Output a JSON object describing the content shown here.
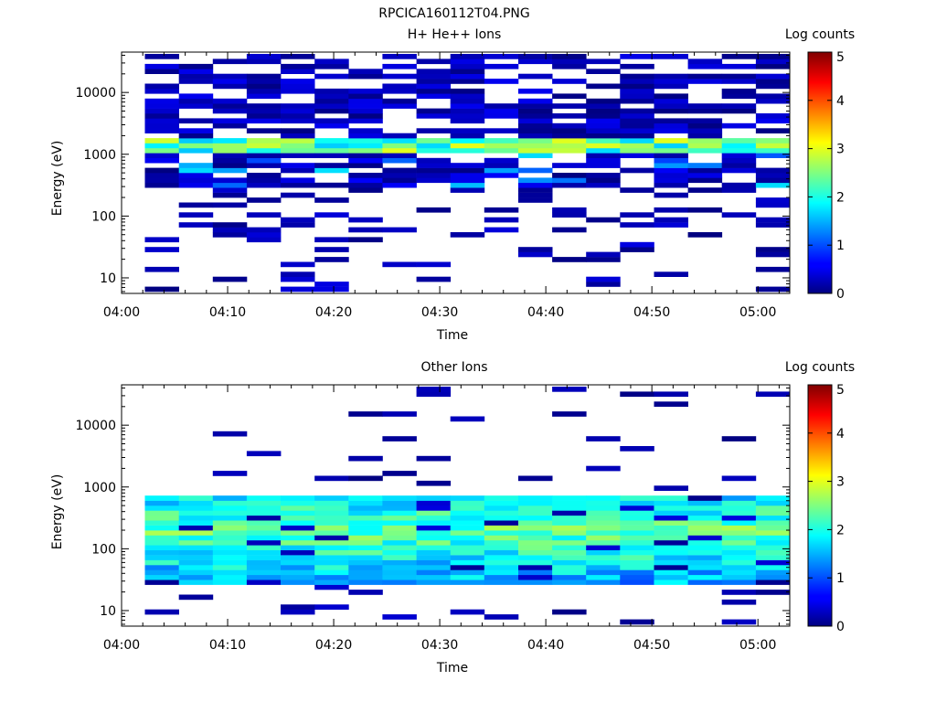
{
  "figure_title": "RPCICA160112T04.PNG",
  "chart_data": [
    {
      "type": "heatmap",
      "title": "H+ He++ Ions",
      "xlabel": "Time",
      "ylabel": "Energy (eV)",
      "y_scale": "log",
      "ylim": [
        5.6,
        45000
      ],
      "y_ticks": [
        {
          "value": 10,
          "label": "10"
        },
        {
          "value": 100,
          "label": "100"
        },
        {
          "value": 1000,
          "label": "1000"
        },
        {
          "value": 10000,
          "label": "10000"
        }
      ],
      "x_ticks": [
        "04:00",
        "04:10",
        "04:20",
        "04:30",
        "04:40",
        "04:50",
        "05:00"
      ],
      "x_start": "04:00",
      "x_end": "05:03",
      "column_width_min": 3.2,
      "column_starts": [
        "04:02.2",
        "04:05.4",
        "04:08.6",
        "04:11.8",
        "04:15.0",
        "04:18.2",
        "04:21.4",
        "04:24.6",
        "04:27.8",
        "04:31.0",
        "04:34.2",
        "04:37.4",
        "04:40.6",
        "04:43.8",
        "04:47.0",
        "04:50.2",
        "04:53.4",
        "04:56.6",
        "04:59.8"
      ],
      "colorbar": {
        "label": "Log counts",
        "range": [
          0,
          5
        ],
        "ticks": [
          0,
          1,
          2,
          3,
          4,
          5
        ]
      },
      "band_summary": {
        "dense_band_energy_eV": [
          1000,
          1700
        ],
        "dense_band_log_counts": [
          1.6,
          3.0
        ],
        "upper_region_energy_eV": [
          1700,
          42000
        ],
        "upper_region_log_counts": [
          0.0,
          0.6
        ],
        "low_energy_sparse_eV": [
          6,
          300
        ],
        "low_energy_log_counts": [
          0.0,
          0.5
        ]
      }
    },
    {
      "type": "heatmap",
      "title": "Other Ions",
      "xlabel": "Time",
      "ylabel": "Energy (eV)",
      "y_scale": "log",
      "ylim": [
        5.6,
        45000
      ],
      "y_ticks": [
        {
          "value": 10,
          "label": "10"
        },
        {
          "value": 100,
          "label": "100"
        },
        {
          "value": 1000,
          "label": "1000"
        },
        {
          "value": 10000,
          "label": "10000"
        }
      ],
      "x_ticks": [
        "04:00",
        "04:10",
        "04:20",
        "04:30",
        "04:40",
        "04:50",
        "05:00"
      ],
      "x_start": "04:00",
      "x_end": "05:03",
      "column_width_min": 3.2,
      "column_starts": [
        "04:02.2",
        "04:05.4",
        "04:08.6",
        "04:11.8",
        "04:15.0",
        "04:18.2",
        "04:21.4",
        "04:24.6",
        "04:27.8",
        "04:31.0",
        "04:34.2",
        "04:37.4",
        "04:40.6",
        "04:43.8",
        "04:47.0",
        "04:50.2",
        "04:53.4",
        "04:56.6",
        "04:59.8"
      ],
      "colorbar": {
        "label": "Log counts",
        "range": [
          0,
          5
        ],
        "ticks": [
          0,
          1,
          2,
          3,
          4,
          5
        ]
      },
      "band_summary": {
        "dense_band_energy_eV": [
          25,
          750
        ],
        "dense_band_log_counts": [
          0.8,
          2.8
        ],
        "peak_energy_eV": 200,
        "sparse_high_energy_eV": [
          1000,
          38000
        ],
        "sparse_log_counts": [
          0.0,
          0.3
        ]
      }
    }
  ]
}
